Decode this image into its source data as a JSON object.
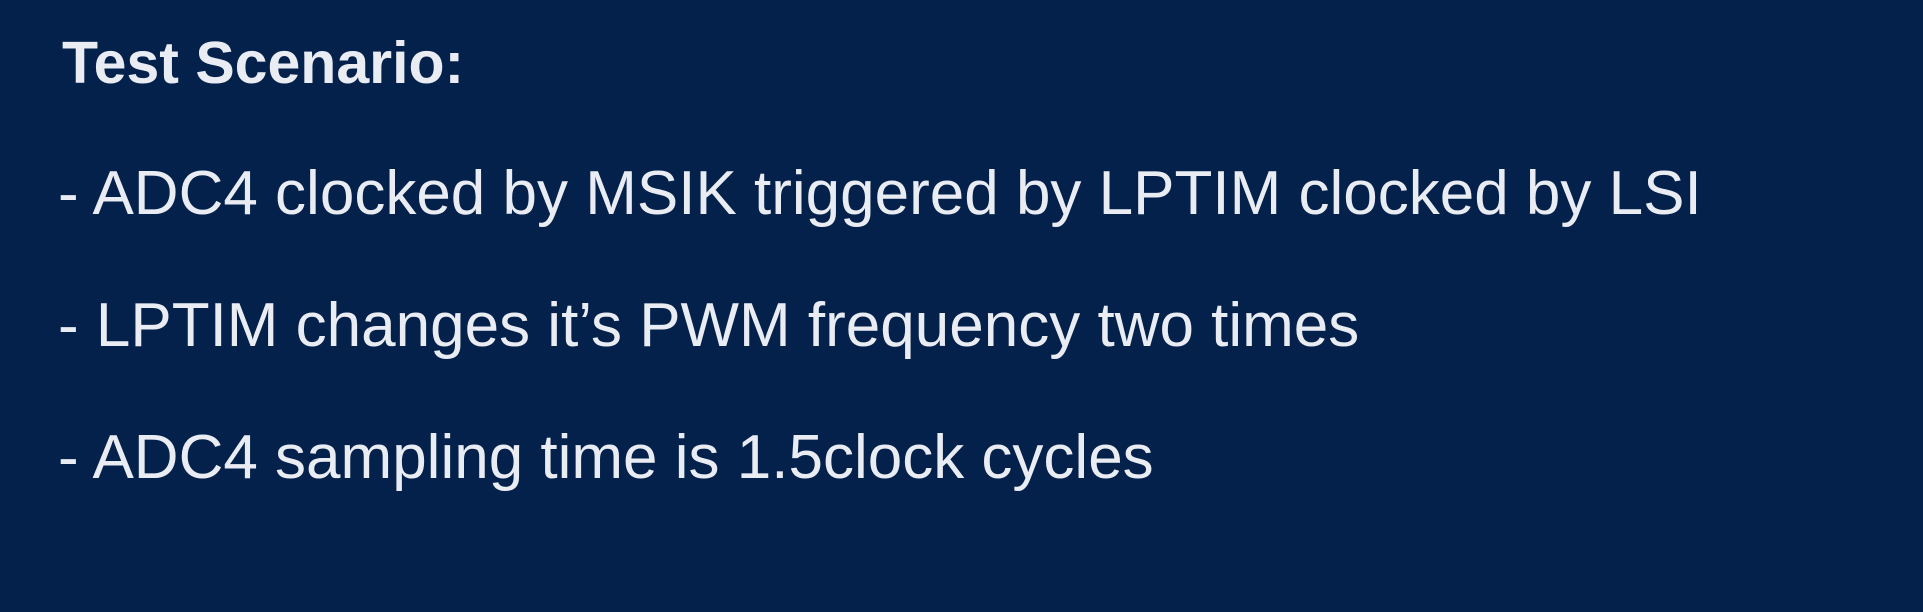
{
  "slide": {
    "title": "Test Scenario:",
    "bullets": [
      "- ADC4 clocked by MSIK triggered by LPTIM clocked by LSI",
      "- LPTIM changes it’s PWM frequency two times",
      "- ADC4 sampling time is 1.5clock cycles"
    ]
  },
  "colors": {
    "background": "#03214b",
    "text": "#e9ecf2"
  }
}
